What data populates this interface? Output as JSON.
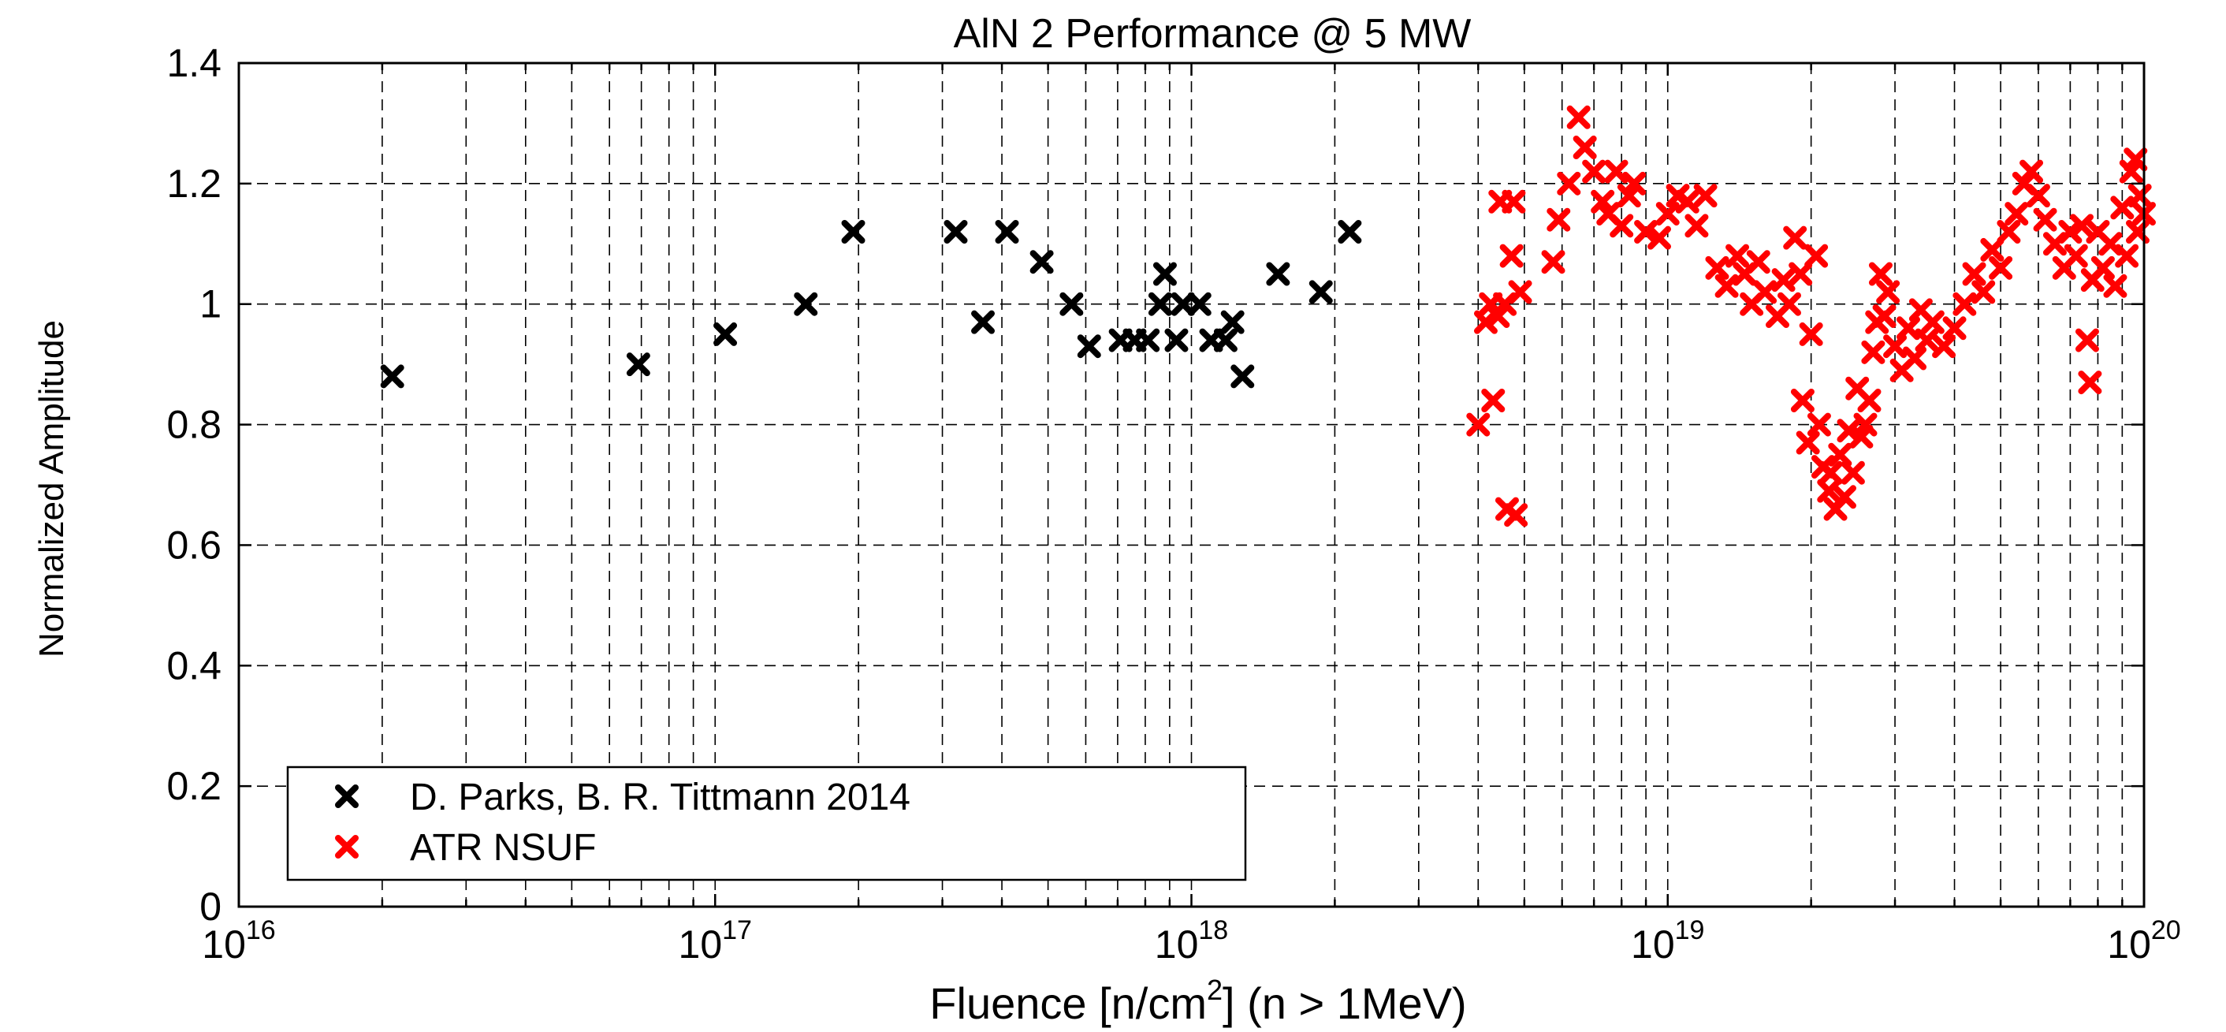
{
  "chart_data": {
    "type": "scatter",
    "title": "AlN 2 Performance @ 5 MW",
    "xlabel_prefix": "Fluence [n/cm",
    "xlabel_sup": "2",
    "xlabel_suffix": "] (n > 1MeV)",
    "ylabel": "Normalized Amplitude",
    "xscale": "log",
    "xlim": [
      1e+16,
      1e+20
    ],
    "ylim": [
      0,
      1.4
    ],
    "grid": true,
    "legend_position": "bottom-left",
    "x_ticks": [
      {
        "value": 1e+16,
        "base": "10",
        "exp": "16"
      },
      {
        "value": 1e+17,
        "base": "10",
        "exp": "17"
      },
      {
        "value": 1e+18,
        "base": "10",
        "exp": "18"
      },
      {
        "value": 1e+19,
        "base": "10",
        "exp": "19"
      },
      {
        "value": 1e+20,
        "base": "10",
        "exp": "20"
      }
    ],
    "y_ticks": [
      {
        "value": 0,
        "label": "0"
      },
      {
        "value": 0.2,
        "label": "0.2"
      },
      {
        "value": 0.4,
        "label": "0.4"
      },
      {
        "value": 0.6,
        "label": "0.6"
      },
      {
        "value": 0.8,
        "label": "0.8"
      },
      {
        "value": 1.0,
        "label": "1"
      },
      {
        "value": 1.2,
        "label": "1.2"
      },
      {
        "value": 1.4,
        "label": "1.4"
      }
    ],
    "series": [
      {
        "name": "D. Parks, B. R. Tittmann 2014",
        "color": "#000000",
        "marker": "x",
        "points": [
          [
            2.1e+16,
            0.88
          ],
          [
            6.9e+16,
            0.9
          ],
          [
            1.05e+17,
            0.95
          ],
          [
            1.55e+17,
            1.0
          ],
          [
            1.95e+17,
            1.12
          ],
          [
            3.2e+17,
            1.12
          ],
          [
            3.65e+17,
            0.97
          ],
          [
            4.1e+17,
            1.12
          ],
          [
            4.85e+17,
            1.07
          ],
          [
            5.6e+17,
            1.0
          ],
          [
            6.1e+17,
            0.93
          ],
          [
            7.1e+17,
            0.94
          ],
          [
            7.6e+17,
            0.94
          ],
          [
            8.1e+17,
            0.94
          ],
          [
            8.6e+17,
            1.0
          ],
          [
            8.8e+17,
            1.05
          ],
          [
            9.3e+17,
            0.94
          ],
          [
            9.6e+17,
            1.0
          ],
          [
            1.04e+18,
            1.0
          ],
          [
            1.1e+18,
            0.94
          ],
          [
            1.18e+18,
            0.94
          ],
          [
            1.22e+18,
            0.97
          ],
          [
            1.28e+18,
            0.88
          ],
          [
            1.52e+18,
            1.05
          ],
          [
            1.87e+18,
            1.02
          ],
          [
            2.15e+18,
            1.12
          ]
        ]
      },
      {
        "name": "ATR NSUF",
        "color": "#ff0000",
        "marker": "x",
        "points": [
          [
            4e+18,
            0.8
          ],
          [
            4.15e+18,
            0.97
          ],
          [
            4.25e+18,
            1.0
          ],
          [
            4.3e+18,
            0.84
          ],
          [
            4.4e+18,
            0.98
          ],
          [
            4.45e+18,
            1.17
          ],
          [
            4.55e+18,
            1.0
          ],
          [
            4.6e+18,
            0.66
          ],
          [
            4.7e+18,
            1.08
          ],
          [
            4.75e+18,
            1.17
          ],
          [
            4.8e+18,
            0.65
          ],
          [
            4.9e+18,
            1.02
          ],
          [
            5.75e+18,
            1.07
          ],
          [
            5.9e+18,
            1.14
          ],
          [
            6.2e+18,
            1.2
          ],
          [
            6.5e+18,
            1.31
          ],
          [
            6.7e+18,
            1.26
          ],
          [
            7e+18,
            1.22
          ],
          [
            7.3e+18,
            1.17
          ],
          [
            7.5e+18,
            1.15
          ],
          [
            7.8e+18,
            1.22
          ],
          [
            8e+18,
            1.13
          ],
          [
            8.3e+18,
            1.18
          ],
          [
            8.5e+18,
            1.2
          ],
          [
            9e+18,
            1.12
          ],
          [
            9.6e+18,
            1.11
          ],
          [
            1e+19,
            1.15
          ],
          [
            1.05e+19,
            1.18
          ],
          [
            1.1e+19,
            1.17
          ],
          [
            1.15e+19,
            1.13
          ],
          [
            1.2e+19,
            1.18
          ],
          [
            1.27e+19,
            1.06
          ],
          [
            1.33e+19,
            1.03
          ],
          [
            1.4e+19,
            1.08
          ],
          [
            1.45e+19,
            1.05
          ],
          [
            1.5e+19,
            1.0
          ],
          [
            1.55e+19,
            1.07
          ],
          [
            1.6e+19,
            1.02
          ],
          [
            1.7e+19,
            0.98
          ],
          [
            1.75e+19,
            1.04
          ],
          [
            1.8e+19,
            1.0
          ],
          [
            1.85e+19,
            1.11
          ],
          [
            1.9e+19,
            1.05
          ],
          [
            1.92e+19,
            0.84
          ],
          [
            1.97e+19,
            0.77
          ],
          [
            2e+19,
            0.95
          ],
          [
            2.05e+19,
            1.08
          ],
          [
            2.08e+19,
            0.8
          ],
          [
            2.12e+19,
            0.73
          ],
          [
            2.18e+19,
            0.69
          ],
          [
            2.2e+19,
            0.72
          ],
          [
            2.25e+19,
            0.66
          ],
          [
            2.3e+19,
            0.75
          ],
          [
            2.35e+19,
            0.68
          ],
          [
            2.4e+19,
            0.79
          ],
          [
            2.45e+19,
            0.72
          ],
          [
            2.5e+19,
            0.86
          ],
          [
            2.55e+19,
            0.78
          ],
          [
            2.6e+19,
            0.8
          ],
          [
            2.65e+19,
            0.84
          ],
          [
            2.7e+19,
            0.92
          ],
          [
            2.75e+19,
            0.97
          ],
          [
            2.8e+19,
            1.05
          ],
          [
            2.85e+19,
            0.98
          ],
          [
            2.9e+19,
            1.02
          ],
          [
            3e+19,
            0.93
          ],
          [
            3.1e+19,
            0.89
          ],
          [
            3.2e+19,
            0.96
          ],
          [
            3.3e+19,
            0.91
          ],
          [
            3.4e+19,
            0.99
          ],
          [
            3.5e+19,
            0.94
          ],
          [
            3.6e+19,
            0.97
          ],
          [
            3.8e+19,
            0.93
          ],
          [
            4e+19,
            0.96
          ],
          [
            4.2e+19,
            1.0
          ],
          [
            4.4e+19,
            1.05
          ],
          [
            4.6e+19,
            1.02
          ],
          [
            4.8e+19,
            1.09
          ],
          [
            5e+19,
            1.06
          ],
          [
            5.2e+19,
            1.12
          ],
          [
            5.4e+19,
            1.15
          ],
          [
            5.6e+19,
            1.2
          ],
          [
            5.8e+19,
            1.22
          ],
          [
            6e+19,
            1.18
          ],
          [
            6.2e+19,
            1.14
          ],
          [
            6.5e+19,
            1.1
          ],
          [
            6.8e+19,
            1.06
          ],
          [
            7e+19,
            1.12
          ],
          [
            7.2e+19,
            1.08
          ],
          [
            7.4e+19,
            1.13
          ],
          [
            7.6e+19,
            0.94
          ],
          [
            7.7e+19,
            0.87
          ],
          [
            7.8e+19,
            1.04
          ],
          [
            8e+19,
            1.12
          ],
          [
            8.2e+19,
            1.06
          ],
          [
            8.5e+19,
            1.1
          ],
          [
            8.7e+19,
            1.03
          ],
          [
            9e+19,
            1.16
          ],
          [
            9.2e+19,
            1.08
          ],
          [
            9.4e+19,
            1.22
          ],
          [
            9.6e+19,
            1.24
          ],
          [
            9.7e+19,
            1.12
          ],
          [
            9.8e+19,
            1.18
          ],
          [
            1e+20,
            1.15
          ]
        ]
      }
    ]
  }
}
